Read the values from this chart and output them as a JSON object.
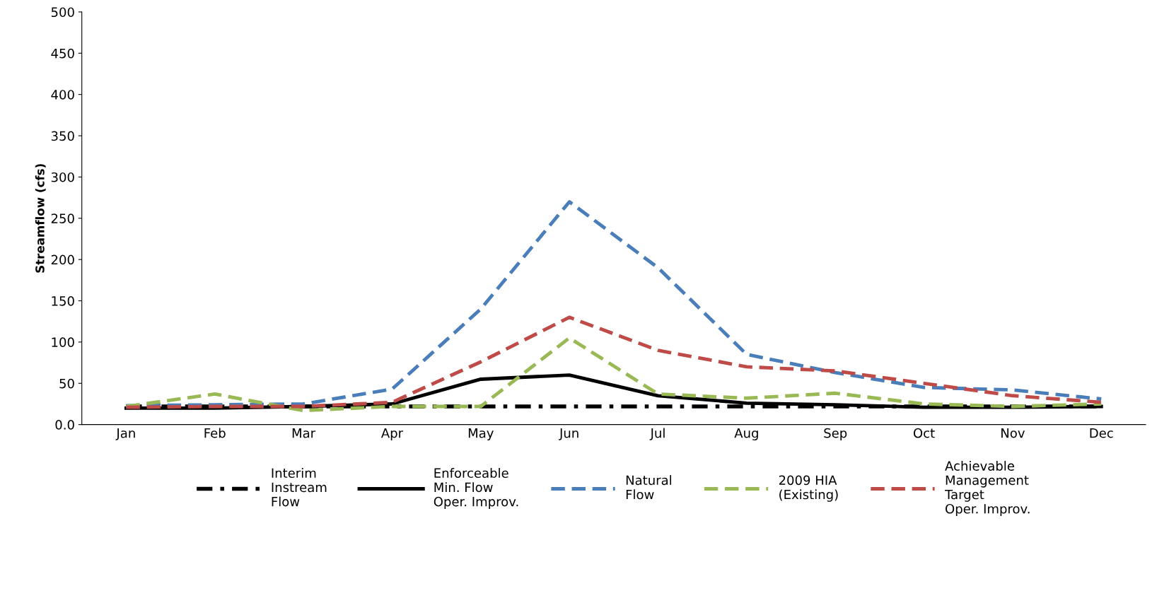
{
  "chart_data": {
    "type": "line",
    "ylabel": "Streamflow (cfs)",
    "categories": [
      "Jan",
      "Feb",
      "Mar",
      "Apr",
      "May",
      "Jun",
      "Jul",
      "Aug",
      "Sep",
      "Oct",
      "Nov",
      "Dec"
    ],
    "ylim": [
      0,
      500
    ],
    "yticks": [
      {
        "value": 0,
        "label": "0.0"
      },
      50,
      100,
      150,
      200,
      250,
      300,
      350,
      400,
      450,
      500
    ],
    "grid": false,
    "legend": "bottom",
    "marker": "none",
    "series": [
      {
        "name": "Interim\nInstream\nFlow",
        "color": "#000000",
        "line_style": "dashdot",
        "values": [
          22,
          22,
          22,
          22,
          22,
          22,
          22,
          22,
          22,
          22,
          22,
          22
        ]
      },
      {
        "name": "Enforceable\nMin. Flow\nOper. Improv.",
        "color": "#000000",
        "line_style": "solid",
        "values": [
          20,
          20,
          22,
          25,
          55,
          60,
          35,
          26,
          24,
          21,
          21,
          22
        ]
      },
      {
        "name": "Natural\nFlow",
        "color": "#4a7ebb",
        "line_style": "dashed",
        "values": [
          23,
          24,
          25,
          43,
          140,
          270,
          190,
          85,
          63,
          45,
          42,
          31
        ]
      },
      {
        "name": "2009 HIA\n(Existing)",
        "color": "#98b954",
        "line_style": "dashed",
        "values": [
          22,
          37,
          17,
          22,
          22,
          105,
          37,
          32,
          38,
          25,
          22,
          25
        ]
      },
      {
        "name": "Achievable\nManagement\nTarget\nOper. Improv.",
        "color": "#be4b48",
        "line_style": "dashed",
        "values": [
          21,
          22,
          22,
          27,
          76,
          130,
          90,
          70,
          65,
          50,
          35,
          27
        ]
      }
    ]
  }
}
